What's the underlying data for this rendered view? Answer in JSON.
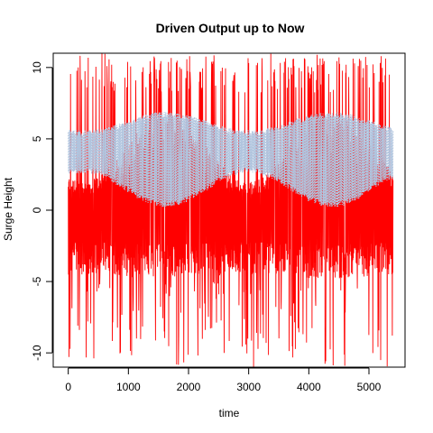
{
  "chart_data": {
    "type": "line",
    "title": "Driven Output up to Now",
    "xlabel": "time",
    "ylabel": "Surge Height",
    "xlim": [
      -250,
      5600
    ],
    "ylim": [
      -11,
      11
    ],
    "x_ticks": [
      0,
      1000,
      2000,
      3000,
      4000,
      5000
    ],
    "y_ticks": [
      -10,
      -5,
      0,
      5,
      10
    ],
    "grid": false,
    "legend": "none",
    "series": [
      {
        "color": "#ff0000",
        "x_range": [
          0,
          5400
        ],
        "description_values": {
          "dense_band_min": -4.5,
          "dense_band_max": 2.0,
          "spike_max": 11,
          "spike_min": -11,
          "upper_envelope_period": 2750,
          "upper_envelope_min": 5.5,
          "upper_envelope_max": 7.0
        }
      },
      {
        "color": "#b0c4de",
        "style": "dotted",
        "x_range": [
          0,
          5400
        ],
        "description_values": {
          "oscillation_min": 0.0,
          "oscillation_max": 7.0,
          "envelope_period": 2750
        }
      }
    ]
  }
}
